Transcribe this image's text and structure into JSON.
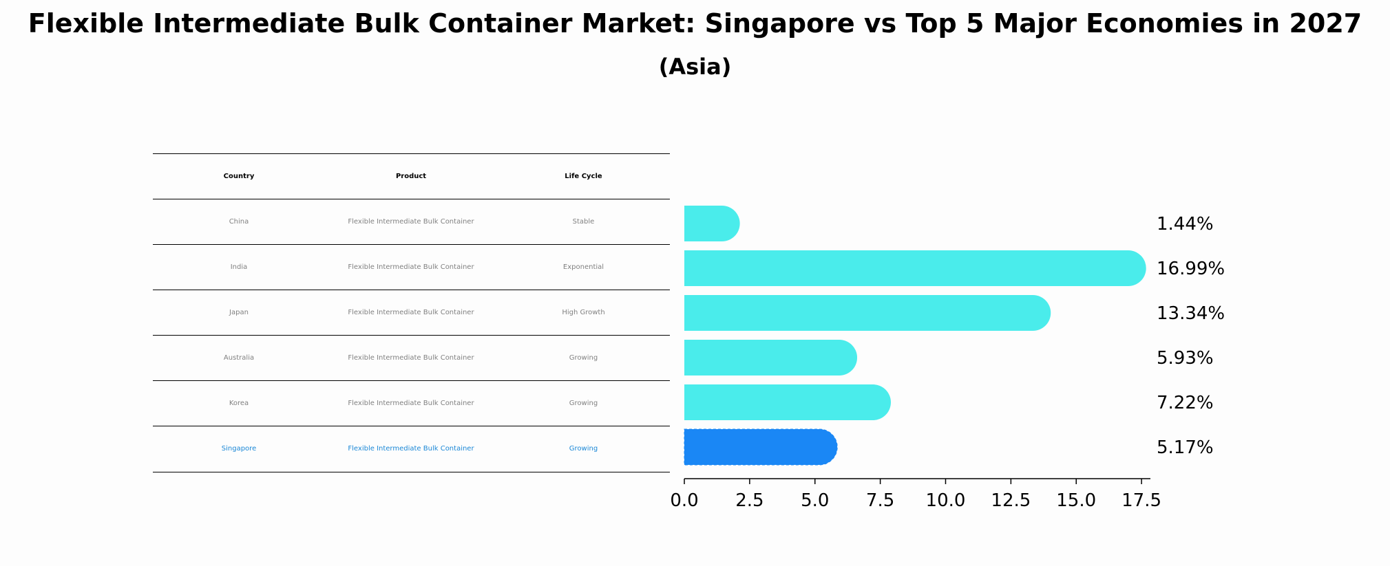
{
  "title": "Flexible Intermediate Bulk Container Market: Singapore vs Top 5 Major Economies in 2027",
  "subtitle": "(Asia)",
  "table": {
    "headers": [
      "Country",
      "Product",
      "Life Cycle"
    ],
    "rows": [
      [
        "China",
        "Flexible Intermediate Bulk Container",
        "Stable"
      ],
      [
        "India",
        "Flexible Intermediate Bulk Container",
        "Exponential"
      ],
      [
        "Japan",
        "Flexible Intermediate Bulk Container",
        "High Growth"
      ],
      [
        "Australia",
        "Flexible Intermediate Bulk Container",
        "Growing"
      ],
      [
        "Korea",
        "Flexible Intermediate Bulk Container",
        "Growing"
      ],
      [
        "Singapore",
        "Flexible Intermediate Bulk Container",
        "Growing"
      ]
    ]
  },
  "chart_data": {
    "type": "bar",
    "orientation": "horizontal",
    "categories": [
      "China",
      "India",
      "Japan",
      "Australia",
      "Korea",
      "Singapore"
    ],
    "values": [
      1.44,
      16.99,
      13.34,
      5.93,
      7.22,
      5.17
    ],
    "value_labels": [
      "1.44%",
      "16.99%",
      "13.34%",
      "5.93%",
      "7.22%",
      "5.17%"
    ],
    "highlight": "Singapore",
    "xlim": [
      0,
      17.84
    ],
    "xticks": [
      0.0,
      2.5,
      5.0,
      7.5,
      10.0,
      12.5,
      15.0,
      17.5
    ],
    "xtick_labels": [
      "0.0",
      "2.5",
      "5.0",
      "7.5",
      "10.0",
      "12.5",
      "15.0",
      "17.5"
    ],
    "colors": {
      "default": "#4aeceb",
      "highlight": "#1a87f5"
    }
  }
}
